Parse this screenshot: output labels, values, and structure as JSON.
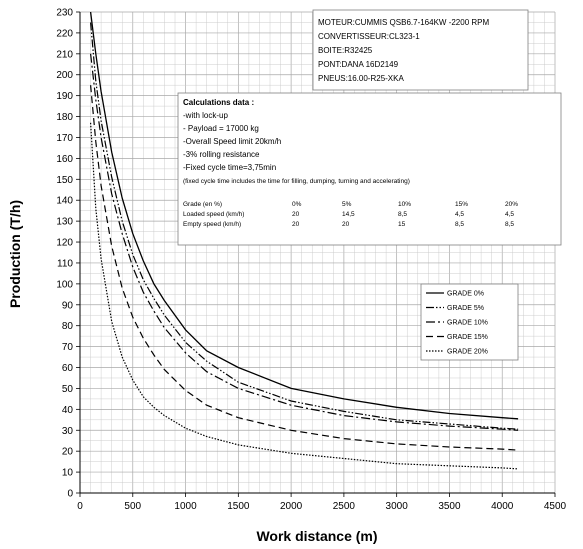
{
  "chart_data": {
    "type": "line",
    "title": "",
    "xlabel": "Work distance (m)",
    "ylabel": "Production (T/h)",
    "xlim": [
      0,
      4500
    ],
    "ylim": [
      0,
      230
    ],
    "x_ticks": [
      0,
      500,
      1000,
      1500,
      2000,
      2500,
      3000,
      3500,
      4000,
      4500
    ],
    "y_ticks": [
      0,
      10,
      20,
      30,
      40,
      50,
      60,
      70,
      80,
      90,
      100,
      110,
      120,
      130,
      140,
      150,
      160,
      170,
      180,
      190,
      200,
      210,
      220,
      230
    ],
    "grid": true,
    "legend_position": "right",
    "series": [
      {
        "name": "GRADE 0%",
        "style": "solid",
        "x": [
          100,
          150,
          200,
          300,
          400,
          500,
          600,
          700,
          800,
          1000,
          1200,
          1500,
          2000,
          2500,
          3000,
          3500,
          4000,
          4150
        ],
        "y": [
          230,
          210,
          192,
          163,
          141,
          124,
          111,
          100,
          92,
          78,
          68,
          60,
          50,
          45,
          41,
          38,
          36,
          35.5
        ]
      },
      {
        "name": "GRADE 5%",
        "style": "dash-dot-dot",
        "x": [
          100,
          150,
          200,
          300,
          400,
          500,
          600,
          700,
          800,
          1000,
          1200,
          1500,
          2000,
          2500,
          3000,
          3500,
          4000,
          4150
        ],
        "y": [
          225,
          197,
          178,
          151,
          130,
          114,
          102,
          93,
          85,
          72,
          63,
          53,
          44,
          39,
          35,
          33,
          31,
          30.5
        ]
      },
      {
        "name": "GRADE 10%",
        "style": "dash-dot",
        "x": [
          100,
          150,
          200,
          300,
          400,
          500,
          600,
          700,
          800,
          1000,
          1200,
          1500,
          2000,
          2500,
          3000,
          3500,
          4000,
          4150
        ],
        "y": [
          210,
          188,
          170,
          143,
          124,
          108,
          96,
          87,
          79,
          67,
          58,
          50,
          42,
          37,
          34,
          32,
          30.5,
          30
        ]
      },
      {
        "name": "GRADE 15%",
        "style": "dashed",
        "x": [
          100,
          150,
          200,
          300,
          400,
          500,
          600,
          700,
          800,
          1000,
          1200,
          1500,
          2000,
          2500,
          3000,
          3500,
          4000,
          4150
        ],
        "y": [
          195,
          168,
          147,
          118,
          98,
          84,
          74,
          66,
          59,
          49,
          42,
          36,
          30,
          26,
          23.5,
          22,
          21,
          20.5
        ]
      },
      {
        "name": "GRADE 20%",
        "style": "dotted",
        "x": [
          100,
          150,
          200,
          300,
          400,
          500,
          600,
          700,
          800,
          1000,
          1200,
          1500,
          2000,
          2500,
          3000,
          3500,
          4000,
          4150
        ],
        "y": [
          177,
          136,
          112,
          82,
          65,
          54,
          46,
          41,
          37,
          31,
          27,
          23,
          19,
          16.5,
          14,
          13,
          12,
          11.5
        ]
      }
    ]
  },
  "info_box": {
    "lines": [
      "MOTEUR:CUMMIS QSB6.7-164KW -2200 RPM",
      "CONVERTISSEUR:CL323-1",
      "BOITE:R32425",
      "PONT:DANA 16D2149",
      "PNEUS:16.00-R25-XKA"
    ]
  },
  "calc_box": {
    "title": "Calculations data :",
    "lines": [
      "-with lock-up",
      "- Payload = 17000 kg",
      "-Overall Speed limit 20km/h",
      "-3% rolling resistance",
      "-Fixed cycle time=3,75min"
    ],
    "note": "(fixed cycle time includes the time for filling, dumping, turning and accelerating)",
    "table": [
      [
        "Grade (en %)",
        "0%",
        "5%",
        "10%",
        "15%",
        "20%"
      ],
      [
        "Loaded speed (km/h)",
        "20",
        "14,5",
        "8,5",
        "4,5",
        "4,5"
      ],
      [
        "Empty speed  (km/h)",
        "20",
        "20",
        "15",
        "8,5",
        "8,5"
      ]
    ]
  },
  "colors": {
    "line": "#000000",
    "grid": "#c8c8c8",
    "border": "#7f7f7f"
  }
}
